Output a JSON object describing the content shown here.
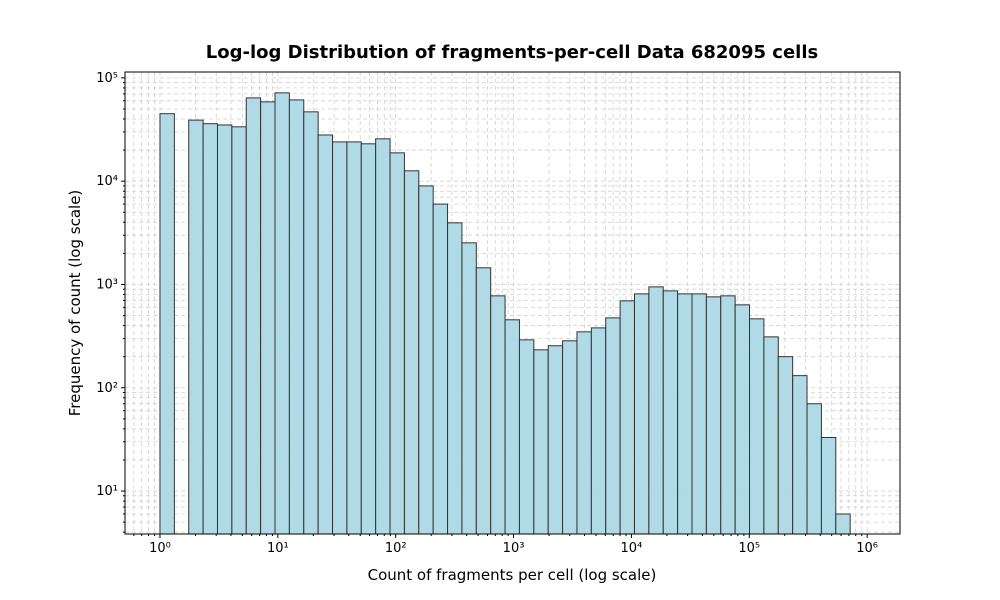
{
  "chart_data": {
    "type": "histogram",
    "title": "Log-log Distribution of fragments-per-cell Data 682095 cells",
    "x_label": "Count of fragments per cell (log scale)",
    "y_label": "Frequency of count (log scale)",
    "bins": [
      1,
      1.325,
      1.754,
      2.323,
      3.076,
      4.074,
      5.395,
      7.145,
      9.462,
      12.53,
      16.6,
      21.98,
      29.11,
      38.55,
      51.05,
      67.61,
      89.54,
      118.6,
      157,
      208,
      275.4,
      364.7,
      483.1,
      639.7,
      847.2,
      1122,
      1486,
      1968,
      2606,
      3451,
      4571,
      6053,
      8017,
      10617,
      14060,
      18621,
      24660,
      32659,
      43251,
      57280,
      75858,
      100462,
      133045,
      176197,
      233346,
      309030,
      409260,
      542001,
      717794
    ],
    "counts": [
      45000,
      0,
      39000,
      36000,
      35000,
      33600,
      64000,
      58600,
      71600,
      61200,
      46900,
      28000,
      24000,
      24000,
      23000,
      25700,
      18800,
      12600,
      9000,
      6000,
      3950,
      2530,
      1450,
      776,
      455,
      291,
      233,
      255,
      285,
      348,
      380,
      475,
      694,
      811,
      948,
      867,
      811,
      811,
      759,
      776,
      635,
      465,
      311,
      200,
      131,
      70,
      33,
      6
    ],
    "color": "#add8e6",
    "edge_color": "#333333",
    "xscale": "log",
    "yscale": "log",
    "xlim": [
      0.505,
      1900000
    ],
    "ylim": [
      3.84,
      114000
    ],
    "xticks": [
      {
        "value": 1,
        "label": "10⁰"
      },
      {
        "value": 10,
        "label": "10¹"
      },
      {
        "value": 100,
        "label": "10²"
      },
      {
        "value": 1000,
        "label": "10³"
      },
      {
        "value": 10000,
        "label": "10⁴"
      },
      {
        "value": 100000,
        "label": "10⁵"
      },
      {
        "value": 1000000,
        "label": "10⁶"
      }
    ],
    "yticks": [
      {
        "value": 10,
        "label": "10¹"
      },
      {
        "value": 100,
        "label": "10²"
      },
      {
        "value": 1000,
        "label": "10³"
      },
      {
        "value": 10000,
        "label": "10⁴"
      },
      {
        "value": 100000,
        "label": "10⁵"
      }
    ],
    "grid": true
  }
}
